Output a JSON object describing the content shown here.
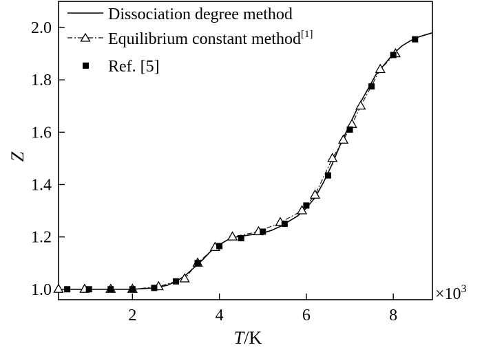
{
  "chart_data": {
    "type": "line",
    "xlabel_italic": "T",
    "xlabel_rest": "/K",
    "ylabel": "Z",
    "x_multiplier_prefix": "×10",
    "x_multiplier_exp": "3",
    "xlim": [
      0.3,
      8.9
    ],
    "ylim": [
      0.96,
      2.1
    ],
    "x_ticks": [
      2,
      4,
      6,
      8
    ],
    "y_ticks": [
      1.0,
      1.2,
      1.4,
      1.6,
      1.8,
      2.0
    ],
    "x_tick_labels": [
      "2",
      "4",
      "6",
      "8"
    ],
    "y_tick_labels": [
      "1.0",
      "1.2",
      "1.4",
      "1.6",
      "1.8",
      "2.0"
    ],
    "legend_position": "top-left",
    "series": [
      {
        "name": "Dissociation degree method",
        "style": "solid-line",
        "x": [
          0.3,
          1.0,
          2.0,
          2.5,
          2.8,
          3.0,
          3.2,
          3.4,
          3.6,
          3.8,
          4.0,
          4.2,
          4.4,
          4.6,
          4.8,
          5.0,
          5.2,
          5.4,
          5.6,
          5.8,
          6.0,
          6.2,
          6.4,
          6.6,
          6.8,
          7.0,
          7.2,
          7.4,
          7.6,
          7.8,
          8.0,
          8.2,
          8.4,
          8.6,
          8.9
        ],
        "y": [
          1.0,
          1.0,
          1.0,
          1.005,
          1.015,
          1.03,
          1.05,
          1.08,
          1.11,
          1.145,
          1.17,
          1.19,
          1.2,
          1.205,
          1.21,
          1.215,
          1.225,
          1.24,
          1.26,
          1.28,
          1.31,
          1.35,
          1.41,
          1.48,
          1.56,
          1.63,
          1.7,
          1.76,
          1.82,
          1.86,
          1.9,
          1.93,
          1.95,
          1.965,
          1.98
        ]
      },
      {
        "name": "Equilibrium constant method",
        "name_superscript": "[1]",
        "style": "dashdot-line-open-triangle",
        "x": [
          0.3,
          0.9,
          1.5,
          2.0,
          2.6,
          3.2,
          3.5,
          3.9,
          4.3,
          4.9,
          5.4,
          5.9,
          6.2,
          6.6,
          6.85,
          7.05,
          7.25,
          7.7,
          8.05
        ],
        "y": [
          1.0,
          1.0,
          1.0,
          1.0,
          1.01,
          1.04,
          1.1,
          1.16,
          1.2,
          1.22,
          1.255,
          1.3,
          1.36,
          1.5,
          1.57,
          1.63,
          1.7,
          1.84,
          1.9
        ]
      },
      {
        "name": "Ref. [5]",
        "style": "filled-square",
        "x": [
          0.5,
          1.0,
          1.5,
          2.0,
          2.5,
          3.0,
          3.5,
          4.0,
          4.5,
          5.0,
          5.5,
          6.0,
          6.5,
          7.0,
          7.5,
          8.0,
          8.5
        ],
        "y": [
          1.0,
          1.0,
          1.0,
          1.0,
          1.005,
          1.03,
          1.1,
          1.165,
          1.195,
          1.22,
          1.25,
          1.32,
          1.435,
          1.61,
          1.775,
          1.895,
          1.955
        ]
      }
    ]
  }
}
